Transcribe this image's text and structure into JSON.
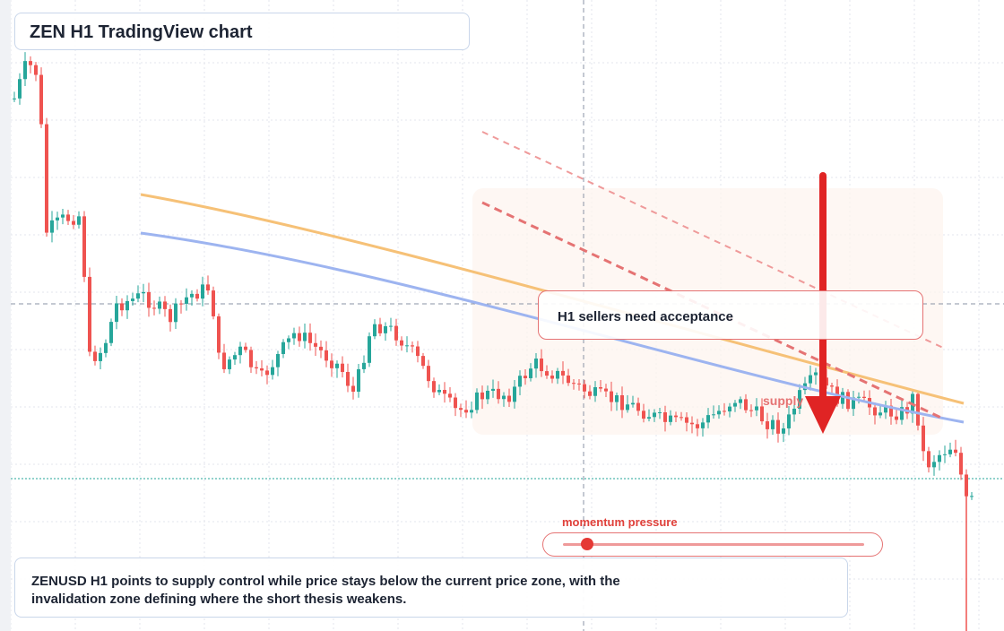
{
  "title": "ZEN H1 TradingView chart",
  "callout": "H1 sellers need acceptance",
  "supply_label": "supply",
  "momentum": {
    "label": "momentum pressure",
    "level": 0.08
  },
  "summary": "ZENUSD H1 points to supply control while price stays below the current price zone, with the invalidation zone defining where the short thesis weakens.",
  "colors": {
    "bull": "#26a69a",
    "bear": "#ef5350",
    "ma_fast": "#f6c177",
    "ma_slow": "#9db4f0",
    "down_line": "#e57373",
    "arrow": "#e02424",
    "grid": "#e3e6ec"
  },
  "chart_data": {
    "type": "candlestick",
    "timeframe": "H1",
    "symbol": "ZENUSD",
    "y_axis_labels": "none visible",
    "candles_approx_count": 180,
    "series": [
      {
        "name": "",
        "kind": "moving-average"
      },
      {
        "name": "",
        "kind": "moving-average"
      }
    ],
    "annotations": [
      "supply",
      "H1 sellers need acceptance",
      "momentum pressure"
    ]
  }
}
